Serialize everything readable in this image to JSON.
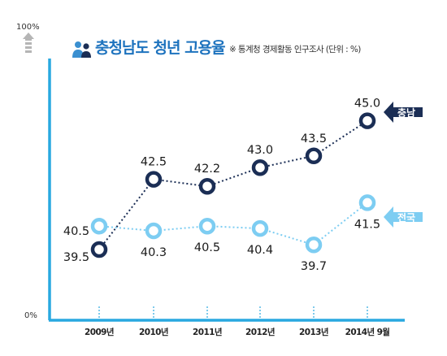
{
  "chart_data": {
    "type": "line",
    "title": "충청남도 청년 고용율",
    "subtitle": "※ 통계청 경제활동 인구조사 (단위 : %)",
    "categories": [
      "2009년",
      "2010년",
      "2011년",
      "2012년",
      "2013년",
      "2014년 9월"
    ],
    "y_axis_top_label": "100%",
    "y_axis_bottom_label": "0%",
    "series": [
      {
        "name": "충남",
        "values": [
          39.5,
          42.5,
          42.2,
          43.0,
          43.5,
          45.0
        ],
        "labels": [
          "39.5",
          "42.5",
          "42.2",
          "43.0",
          "43.5",
          "45.0"
        ],
        "color": "#1b2e55"
      },
      {
        "name": "전국",
        "values": [
          40.5,
          40.3,
          40.5,
          40.4,
          39.7,
          41.5
        ],
        "labels": [
          "40.5",
          "40.3",
          "40.5",
          "40.4",
          "39.7",
          "41.5"
        ],
        "color": "#7dcdf2"
      }
    ],
    "axis_color": "#29a8e0",
    "grid": false,
    "legend": "right-of-last-point"
  }
}
